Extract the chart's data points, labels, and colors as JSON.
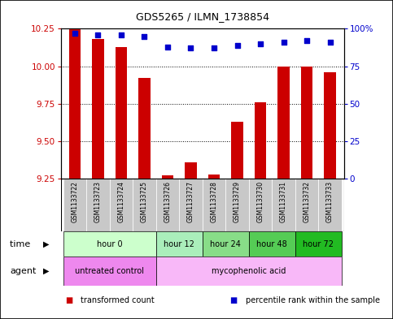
{
  "title": "GDS5265 / ILMN_1738854",
  "samples": [
    "GSM1133722",
    "GSM1133723",
    "GSM1133724",
    "GSM1133725",
    "GSM1133726",
    "GSM1133727",
    "GSM1133728",
    "GSM1133729",
    "GSM1133730",
    "GSM1133731",
    "GSM1133732",
    "GSM1133733"
  ],
  "transformed_counts": [
    10.25,
    10.18,
    10.13,
    9.92,
    9.27,
    9.36,
    9.28,
    9.63,
    9.76,
    10.0,
    10.0,
    9.96
  ],
  "percentile_ranks": [
    97,
    96,
    96,
    95,
    88,
    87,
    87,
    89,
    90,
    91,
    92,
    91
  ],
  "ylim_left": [
    9.25,
    10.25
  ],
  "ylim_right": [
    0,
    100
  ],
  "yticks_left": [
    9.25,
    9.5,
    9.75,
    10.0,
    10.25
  ],
  "yticks_right": [
    0,
    25,
    50,
    75,
    100
  ],
  "bar_color": "#cc0000",
  "dot_color": "#0000cc",
  "bar_width": 0.5,
  "time_groups": [
    {
      "label": "hour 0",
      "samples": [
        0,
        1,
        2,
        3
      ],
      "color": "#ccffcc"
    },
    {
      "label": "hour 12",
      "samples": [
        4,
        5
      ],
      "color": "#aaeebb"
    },
    {
      "label": "hour 24",
      "samples": [
        6,
        7
      ],
      "color": "#88dd88"
    },
    {
      "label": "hour 48",
      "samples": [
        8,
        9
      ],
      "color": "#55cc55"
    },
    {
      "label": "hour 72",
      "samples": [
        10,
        11
      ],
      "color": "#22bb22"
    }
  ],
  "agent_groups": [
    {
      "label": "untreated control",
      "samples": [
        0,
        1,
        2,
        3
      ],
      "color": "#ee88ee"
    },
    {
      "label": "mycophenolic acid",
      "samples": [
        4,
        5,
        6,
        7,
        8,
        9,
        10,
        11
      ],
      "color": "#f8b8f8"
    }
  ],
  "sample_bg_color": "#c8c8c8",
  "sample_border_color": "#aaaaaa",
  "background_color": "#ffffff",
  "tick_label_color_left": "#cc0000",
  "tick_label_color_right": "#0000cc",
  "legend_items": [
    {
      "label": "transformed count",
      "color": "#cc0000"
    },
    {
      "label": "percentile rank within the sample",
      "color": "#0000cc"
    }
  ]
}
